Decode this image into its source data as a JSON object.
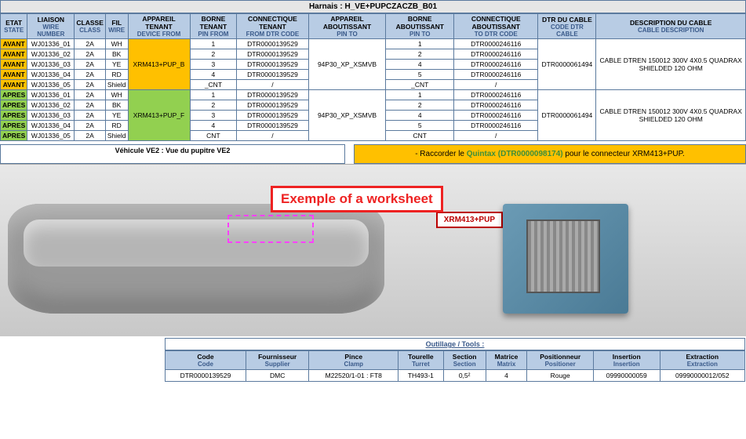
{
  "titleBar": "Harnais : H_VE+PUPCZACZB_B01",
  "columns": [
    {
      "fr": "ETAT",
      "en": "STATE"
    },
    {
      "fr": "LIAISON",
      "en": "WIRE NUMBER"
    },
    {
      "fr": "CLASSE",
      "en": "CLASS"
    },
    {
      "fr": "FIL",
      "en": "WIRE"
    },
    {
      "fr": "APPAREIL TENANT",
      "en": "DEVICE FROM"
    },
    {
      "fr": "BORNE TENANT",
      "en": "PIN FROM"
    },
    {
      "fr": "CONNECTIQUE TENANT",
      "en": "FROM DTR CODE"
    },
    {
      "fr": "APPAREIL ABOUTISSANT",
      "en": "PIN TO"
    },
    {
      "fr": "BORNE ABOUTISSANT",
      "en": "PIN TO"
    },
    {
      "fr": "CONNECTIQUE ABOUTISSANT",
      "en": "TO DTR CODE"
    },
    {
      "fr": "DTR DU CABLE",
      "en": "CODE DTR CABLE"
    },
    {
      "fr": "DESCRIPTION DU CABLE",
      "en": "CABLE DESCRIPTION"
    }
  ],
  "groups": [
    {
      "state": "AVANT",
      "stateClass": "avant",
      "device": "XRM413+PUP_B",
      "deviceClass": "orange-cell",
      "appTo": "94P30_XP_XSMVB",
      "dtrCable": "DTR0000061494",
      "desc": "CABLE DTREN 150012 300V 4X0.5 QUADRAX SHIELDED 120 OHM",
      "rows": [
        {
          "wire": "WJ01336_01",
          "cls": "2A",
          "fil": "WH",
          "pinFrom": "1",
          "connFrom": "DTR0000139529",
          "pinTo": "1",
          "connTo": "DTR0000246116"
        },
        {
          "wire": "WJ01336_02",
          "cls": "2A",
          "fil": "BK",
          "pinFrom": "2",
          "connFrom": "DTR0000139529",
          "pinTo": "2",
          "connTo": "DTR0000246116"
        },
        {
          "wire": "WJ01336_03",
          "cls": "2A",
          "fil": "YE",
          "pinFrom": "3",
          "connFrom": "DTR0000139529",
          "pinTo": "4",
          "connTo": "DTR0000246116"
        },
        {
          "wire": "WJ01336_04",
          "cls": "2A",
          "fil": "RD",
          "pinFrom": "4",
          "connFrom": "DTR0000139529",
          "pinTo": "5",
          "connTo": "DTR0000246116"
        },
        {
          "wire": "WJ01336_05",
          "cls": "2A",
          "fil": "Shield",
          "pinFrom": "_CNT",
          "connFrom": "/",
          "pinTo": "_CNT",
          "connTo": "/"
        }
      ]
    },
    {
      "state": "APRES",
      "stateClass": "apres",
      "device": "XRM413+PUP_F",
      "deviceClass": "green-cell",
      "appTo": "94P30_XP_XSMVB",
      "dtrCable": "DTR0000061494",
      "desc": "CABLE DTREN 150012 300V 4X0.5 QUADRAX SHIELDED 120 OHM",
      "rows": [
        {
          "wire": "WJ01336_01",
          "cls": "2A",
          "fil": "WH",
          "pinFrom": "1",
          "connFrom": "DTR0000139529",
          "pinTo": "1",
          "connTo": "DTR0000246116"
        },
        {
          "wire": "WJ01336_02",
          "cls": "2A",
          "fil": "BK",
          "pinFrom": "2",
          "connFrom": "DTR0000139529",
          "pinTo": "2",
          "connTo": "DTR0000246116"
        },
        {
          "wire": "WJ01336_03",
          "cls": "2A",
          "fil": "YE",
          "pinFrom": "3",
          "connFrom": "DTR0000139529",
          "pinTo": "4",
          "connTo": "DTR0000246116"
        },
        {
          "wire": "WJ01336_04",
          "cls": "2A",
          "fil": "RD",
          "pinFrom": "4",
          "connFrom": "DTR0000139529",
          "pinTo": "5",
          "connTo": "DTR0000246116"
        },
        {
          "wire": "WJ01336_05",
          "cls": "2A",
          "fil": "Shield",
          "pinFrom": "CNT",
          "connFrom": "/",
          "pinTo": "CNT",
          "connTo": "/"
        }
      ]
    }
  ],
  "callout": "Exemple of a worksheet",
  "vehicleTitle": "Véhicule VE2 : Vue du pupitre VE2",
  "instruction": {
    "prefix": "- Raccorder le  ",
    "highlight": "Quintax (DTR0000098174)",
    "suffix": "  pour le connecteur XRM413+PUP."
  },
  "connectorTag": "XRM413+PUP",
  "toolsTitle": "Outillage / Tools :",
  "toolsCols": [
    {
      "fr": "Code",
      "en": "Code"
    },
    {
      "fr": "Fournisseur",
      "en": "Supplier"
    },
    {
      "fr": "Pince",
      "en": "Clamp"
    },
    {
      "fr": "Tourelle",
      "en": "Turret"
    },
    {
      "fr": "Section",
      "en": "Section"
    },
    {
      "fr": "Matrice",
      "en": "Matrix"
    },
    {
      "fr": "Positionneur",
      "en": "Positioner"
    },
    {
      "fr": "Insertion",
      "en": "Insertion"
    },
    {
      "fr": "Extraction",
      "en": "Extraction"
    }
  ],
  "toolsRow": {
    "code": "DTR0000139529",
    "supplier": "DMC",
    "clamp": "M22520/1-01 : FT8",
    "turret": "TH493-1",
    "section": "0,5²",
    "matrix": "4",
    "positioner": "Rouge",
    "insertion": "09990000059",
    "extraction": "09990000012/052"
  },
  "colors": {
    "header": "#b8cce4",
    "avant": "#ffc000",
    "apres": "#92d050",
    "border": "#5b7a9e",
    "calloutBorder": "#e22",
    "instructionBg": "#ffc000",
    "highlightText": "#3b8f3b",
    "tagRed": "#b00"
  }
}
